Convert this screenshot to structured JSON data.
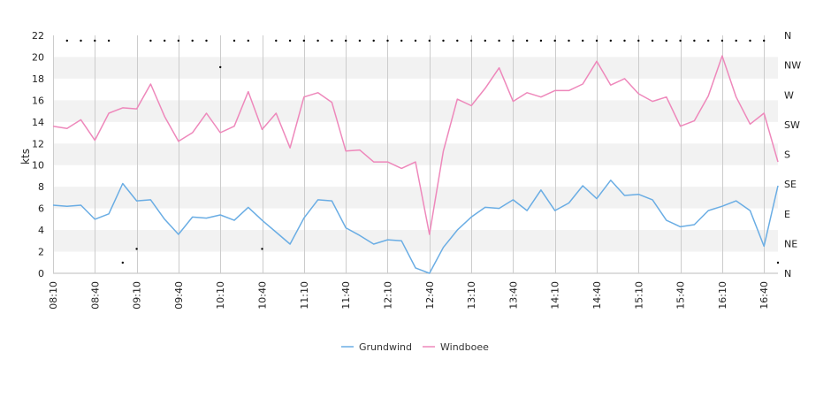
{
  "chart_data": {
    "type": "line",
    "ylabel": "kts",
    "ylim": [
      0,
      22
    ],
    "yticks": [
      0,
      2,
      4,
      6,
      8,
      10,
      12,
      14,
      16,
      18,
      20,
      22
    ],
    "y2labels": [
      "N",
      "NE",
      "E",
      "SE",
      "S",
      "SW",
      "W",
      "NW",
      "N"
    ],
    "y2lim": [
      0,
      360
    ],
    "xlim": [
      "08:10",
      "16:50"
    ],
    "xticks": [
      "08:10",
      "08:40",
      "09:10",
      "09:40",
      "10:10",
      "10:40",
      "11:10",
      "11:40",
      "12:10",
      "12:40",
      "13:10",
      "13:40",
      "14:10",
      "14:40",
      "15:10",
      "15:40",
      "16:10",
      "16:40"
    ],
    "grid": "vertical lines, alternating horizontal bands",
    "legend_position": "bottom-center",
    "colors": {
      "Grundwind": "#6aade4",
      "Windboee": "#ee88bb",
      "direction": "#000000"
    },
    "x": [
      "08:10",
      "08:20",
      "08:30",
      "08:40",
      "08:50",
      "09:00",
      "09:10",
      "09:20",
      "09:30",
      "09:40",
      "09:50",
      "10:00",
      "10:10",
      "10:20",
      "10:30",
      "10:40",
      "10:50",
      "11:00",
      "11:10",
      "11:20",
      "11:30",
      "11:40",
      "11:50",
      "12:00",
      "12:10",
      "12:20",
      "12:30",
      "12:40",
      "12:50",
      "13:00",
      "13:10",
      "13:20",
      "13:30",
      "13:40",
      "13:50",
      "14:00",
      "14:10",
      "14:20",
      "14:30",
      "14:40",
      "14:50",
      "15:00",
      "15:10",
      "15:20",
      "15:30",
      "15:40",
      "15:50",
      "16:00",
      "16:10",
      "16:20",
      "16:30",
      "16:40",
      "16:50"
    ],
    "series": [
      {
        "name": "Grundwind",
        "values": [
          6.3,
          6.2,
          6.3,
          5.0,
          5.5,
          8.3,
          6.7,
          6.8,
          5.0,
          3.6,
          5.2,
          5.1,
          5.4,
          4.9,
          6.1,
          4.9,
          3.8,
          2.7,
          5.1,
          6.8,
          6.7,
          4.2,
          3.5,
          2.7,
          3.1,
          3.0,
          0.5,
          0.0,
          2.4,
          4.0,
          5.2,
          6.1,
          6.0,
          6.8,
          5.8,
          7.7,
          5.8,
          6.5,
          8.1,
          6.9,
          8.6,
          7.2,
          7.3,
          6.8,
          4.9,
          4.3,
          4.5,
          5.8,
          6.2,
          6.7,
          5.8,
          2.5,
          8.1
        ]
      },
      {
        "name": "Windboee",
        "values": [
          13.6,
          13.4,
          14.2,
          12.3,
          14.8,
          15.3,
          15.2,
          17.5,
          14.5,
          12.2,
          13.0,
          14.8,
          13.0,
          13.6,
          16.8,
          13.3,
          14.8,
          11.6,
          16.3,
          16.7,
          15.8,
          11.3,
          11.4,
          10.3,
          10.3,
          9.7,
          10.3,
          3.6,
          11.3,
          16.1,
          15.5,
          17.1,
          19.0,
          15.9,
          16.7,
          16.3,
          16.9,
          16.9,
          17.5,
          19.6,
          17.4,
          18.0,
          16.6,
          15.9,
          16.3,
          13.6,
          14.1,
          16.4,
          20.1,
          16.3,
          13.8,
          14.8,
          10.3
        ]
      }
    ],
    "direction": {
      "x": [
        "08:20",
        "08:30",
        "08:40",
        "08:50",
        "09:00",
        "09:10",
        "09:20",
        "09:30",
        "09:40",
        "09:50",
        "10:00",
        "10:10",
        "10:20",
        "10:30",
        "10:40",
        "10:50",
        "11:00",
        "11:10",
        "11:20",
        "11:30",
        "11:40",
        "11:50",
        "12:00",
        "12:10",
        "12:20",
        "12:30",
        "12:40",
        "12:50",
        "13:00",
        "13:10",
        "13:20",
        "13:30",
        "13:40",
        "13:50",
        "14:00",
        "14:10",
        "14:20",
        "14:30",
        "14:40",
        "14:50",
        "15:00",
        "15:10",
        "15:20",
        "15:30",
        "15:40",
        "15:50",
        "16:00",
        "16:10",
        "16:20",
        "16:30",
        "16:40",
        "16:50"
      ],
      "values": [
        352,
        352,
        352,
        352,
        16,
        37,
        352,
        352,
        352,
        352,
        352,
        312,
        352,
        352,
        37,
        352,
        352,
        352,
        352,
        352,
        352,
        352,
        352,
        352,
        352,
        352,
        352,
        352,
        352,
        352,
        352,
        352,
        352,
        352,
        352,
        352,
        352,
        352,
        352,
        352,
        352,
        352,
        352,
        352,
        352,
        352,
        352,
        352,
        352,
        352,
        352,
        16
      ]
    }
  },
  "legend": [
    {
      "label": "Grundwind",
      "color": "#6aade4"
    },
    {
      "label": "Windboee",
      "color": "#ee88bb"
    }
  ]
}
